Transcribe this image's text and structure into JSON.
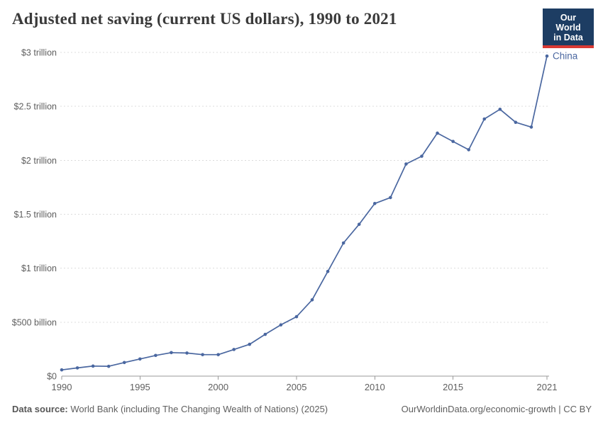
{
  "header": {
    "title": "Adjusted net saving (current US dollars), 1990 to 2021",
    "logo": {
      "line1": "Our World",
      "line2": "in Data"
    }
  },
  "chart_data": {
    "type": "line",
    "title": "Adjusted net saving (current US dollars), 1990 to 2021",
    "unit": "billions of current US dollars",
    "x": [
      1990,
      1991,
      1992,
      1993,
      1994,
      1995,
      1996,
      1997,
      1998,
      1999,
      2000,
      2001,
      2002,
      2003,
      2004,
      2005,
      2006,
      2007,
      2008,
      2009,
      2010,
      2011,
      2012,
      2013,
      2014,
      2015,
      2016,
      2017,
      2018,
      2019,
      2020,
      2021
    ],
    "series": [
      {
        "name": "China",
        "color": "#4a67a0",
        "values": [
          58,
          76,
          93,
          91,
          126,
          159,
          192,
          218,
          214,
          199,
          199,
          247,
          295,
          387,
          475,
          551,
          707,
          970,
          1234,
          1407,
          1600,
          1655,
          1966,
          2038,
          2252,
          2175,
          2098,
          2383,
          2473,
          2352,
          2308,
          2966
        ]
      }
    ],
    "xticks": [
      1990,
      1995,
      2000,
      2005,
      2010,
      2015,
      2021
    ],
    "yticks": [
      {
        "value": 0,
        "label": "$0"
      },
      {
        "value": 500,
        "label": "$500 billion"
      },
      {
        "value": 1000,
        "label": "$1 trillion"
      },
      {
        "value": 1500,
        "label": "$1.5 trillion"
      },
      {
        "value": 2000,
        "label": "$2 trillion"
      },
      {
        "value": 2500,
        "label": "$2.5 trillion"
      },
      {
        "value": 3000,
        "label": "$3 trillion"
      }
    ],
    "ylim": [
      0,
      3000
    ],
    "xlabel": "",
    "ylabel": "",
    "grid": "horizontal-dashed",
    "legend": "line-end-label"
  },
  "footer": {
    "source_label": "Data source:",
    "source_text": "World Bank (including The Changing Wealth of Nations) (2025)",
    "link_text": "OurWorldinData.org/economic-growth",
    "separator": "|",
    "license_text": "CC BY"
  },
  "colors": {
    "line": "#4a67a0",
    "logo_bg": "#1d3d63",
    "logo_accent": "#d93a34",
    "grid": "#dcdcdc",
    "axis": "#9a9a9a",
    "tick_text": "#5f5f5f",
    "title_text": "#3a3a3a",
    "footer_text": "#5f5f5f"
  }
}
